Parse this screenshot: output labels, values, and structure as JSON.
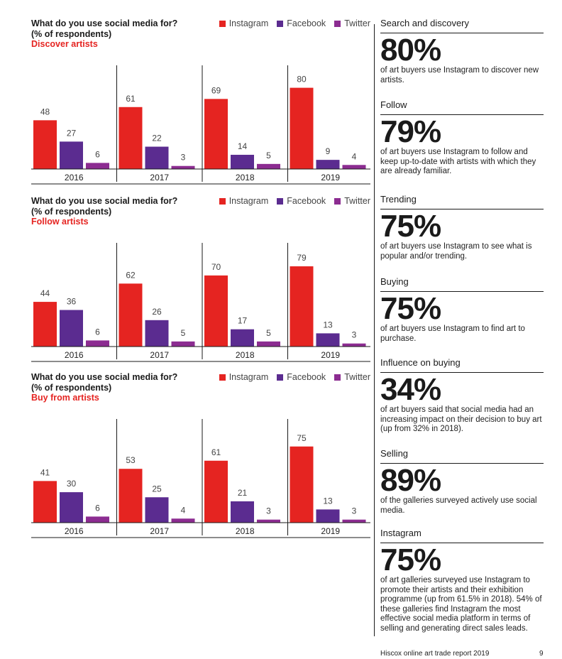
{
  "legend": [
    {
      "label": "Instagram",
      "color": "#e52421"
    },
    {
      "label": "Facebook",
      "color": "#5b2c90"
    },
    {
      "label": "Twitter",
      "color": "#8c2c91"
    }
  ],
  "chart_data": [
    {
      "type": "bar",
      "title": "What do you use social media for?",
      "title2": "(% of respondents)",
      "subtitle": "Discover artists",
      "categories": [
        "2016",
        "2017",
        "2018",
        "2019"
      ],
      "series": [
        {
          "name": "Instagram",
          "values": [
            48,
            61,
            69,
            80
          ]
        },
        {
          "name": "Facebook",
          "values": [
            27,
            22,
            14,
            9
          ]
        },
        {
          "name": "Twitter",
          "values": [
            6,
            3,
            5,
            4
          ]
        }
      ],
      "ylim": [
        0,
        100
      ]
    },
    {
      "type": "bar",
      "title": "What do you use social media for?",
      "title2": "(% of respondents)",
      "subtitle": "Follow artists",
      "categories": [
        "2016",
        "2017",
        "2018",
        "2019"
      ],
      "series": [
        {
          "name": "Instagram",
          "values": [
            44,
            62,
            70,
            79
          ]
        },
        {
          "name": "Facebook",
          "values": [
            36,
            26,
            17,
            13
          ]
        },
        {
          "name": "Twitter",
          "values": [
            6,
            5,
            5,
            3
          ]
        }
      ],
      "ylim": [
        0,
        100
      ]
    },
    {
      "type": "bar",
      "title": "What do you use social media for?",
      "title2": "(% of respondents)",
      "subtitle": "Buy from artists",
      "categories": [
        "2016",
        "2017",
        "2018",
        "2019"
      ],
      "series": [
        {
          "name": "Instagram",
          "values": [
            41,
            53,
            61,
            75
          ]
        },
        {
          "name": "Facebook",
          "values": [
            30,
            25,
            21,
            13
          ]
        },
        {
          "name": "Twitter",
          "values": [
            6,
            4,
            3,
            3
          ]
        }
      ],
      "ylim": [
        0,
        100
      ]
    }
  ],
  "stats": [
    {
      "label": "Search and discovery",
      "value": "80%",
      "desc": "of art buyers use Instagram to discover new artists."
    },
    {
      "label": "Follow",
      "value": "79%",
      "desc": "of art buyers use Instagram to follow and keep up-to-date with artists with which they are already familiar."
    },
    {
      "label": "Trending",
      "value": "75%",
      "desc": "of art buyers use Instagram to see what is popular and/or trending."
    },
    {
      "label": "Buying",
      "value": "75%",
      "desc": "of art buyers use Instagram to find art to purchase."
    },
    {
      "label": "Influence on buying",
      "value": "34%",
      "desc": "of art buyers said that social media had an increasing impact on their decision to buy art (up from 32% in 2018)."
    },
    {
      "label": "Selling",
      "value": "89%",
      "desc": "of the galleries surveyed actively use social media."
    },
    {
      "label": "Instagram",
      "value": "75%",
      "desc": "of art galleries surveyed use Instagram to promote their artists and their exhibition programme (up from 61.5% in 2018). 54% of these galleries find Instagram the most effective social media platform in terms of selling and generating direct sales leads."
    }
  ],
  "footer": {
    "report": "Hiscox online art trade report 2019",
    "page": "9"
  }
}
